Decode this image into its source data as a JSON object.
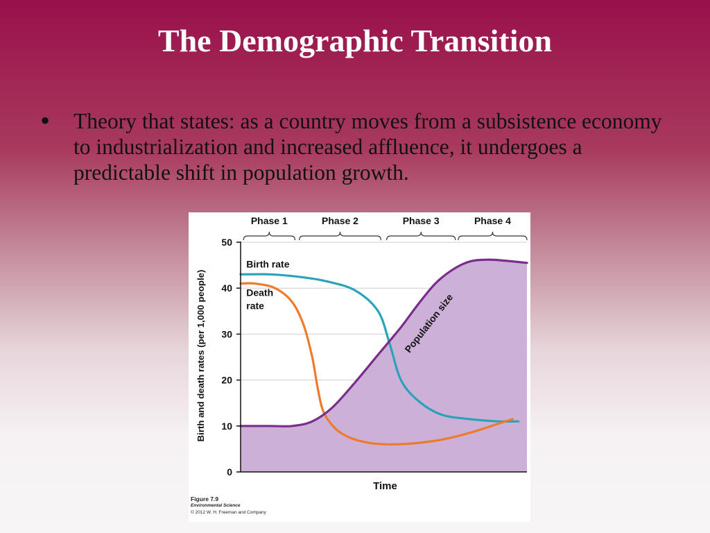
{
  "slide": {
    "title": "The Demographic Transition",
    "bullet": "Theory that states: as a country moves from a subsistence economy to industrialization and increased affluence, it undergoes a predictable shift in population growth."
  },
  "figure": {
    "caption_figure": "Figure 7.9",
    "caption_book": "Environmental Science",
    "caption_copyright": "© 2012 W. H. Freeman and Company"
  },
  "chart_data": {
    "type": "line",
    "xlabel": "Time",
    "ylabel": "Birth and death rates (per 1,000 people)",
    "ylim": [
      0,
      50
    ],
    "yticks": [
      0,
      10,
      20,
      30,
      40,
      50
    ],
    "grid": true,
    "phases": [
      "Phase 1",
      "Phase 2",
      "Phase 3",
      "Phase 4"
    ],
    "series": [
      {
        "name": "Birth rate",
        "color": "#2aa3b8",
        "x": [
          0,
          10,
          20,
          30,
          40,
          48,
          52,
          56,
          62,
          70,
          80,
          90,
          97
        ],
        "y": [
          43,
          43,
          42.5,
          41.5,
          39.5,
          35,
          28,
          20,
          15.5,
          12.5,
          11.5,
          11,
          11
        ]
      },
      {
        "name": "Death rate",
        "color": "#ee7a2c",
        "x": [
          0,
          5,
          12,
          18,
          22,
          25,
          27,
          29,
          33,
          38,
          45,
          52,
          60,
          70,
          80,
          90,
          95
        ],
        "y": [
          41,
          41,
          40,
          37,
          32,
          25,
          18,
          13,
          9.5,
          7.5,
          6.3,
          6,
          6.2,
          7,
          8.5,
          10.5,
          11.5
        ]
      },
      {
        "name": "Population size",
        "color": "#7b2d8b",
        "fill": "#ccb0d8",
        "x": [
          0,
          10,
          18,
          25,
          32,
          40,
          48,
          56,
          62,
          68,
          74,
          80,
          86,
          92,
          100
        ],
        "y": [
          10,
          10,
          10,
          11,
          14,
          19.5,
          25.5,
          31.5,
          36.5,
          41,
          44,
          45.8,
          46.2,
          46,
          45.5
        ]
      }
    ]
  }
}
